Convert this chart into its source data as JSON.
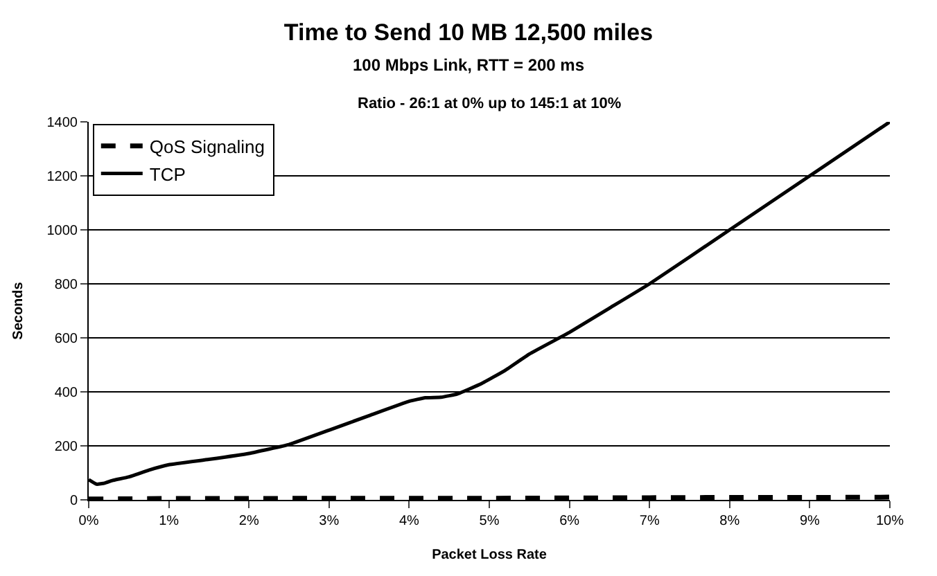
{
  "chart_data": {
    "type": "line",
    "title": "Time to Send 10 MB 12,500 miles",
    "subtitle": "100 Mbps Link, RTT = 200 ms",
    "annotations": [
      "Ratio - 26:1 at 0% up to 145:1 at 10%"
    ],
    "xlabel": "Packet Loss Rate",
    "ylabel": "Seconds",
    "xlim": [
      0,
      10
    ],
    "xticks": [
      {
        "value": 0,
        "label": "0%"
      },
      {
        "value": 1,
        "label": "1%"
      },
      {
        "value": 2,
        "label": "2%"
      },
      {
        "value": 3,
        "label": "3%"
      },
      {
        "value": 4,
        "label": "4%"
      },
      {
        "value": 5,
        "label": "5%"
      },
      {
        "value": 6,
        "label": "6%"
      },
      {
        "value": 7,
        "label": "7%"
      },
      {
        "value": 8,
        "label": "8%"
      },
      {
        "value": 9,
        "label": "9%"
      },
      {
        "value": 10,
        "label": "10%"
      }
    ],
    "ylim": [
      0,
      1400
    ],
    "yticks": [
      0,
      200,
      400,
      600,
      800,
      1000,
      1200,
      1400
    ],
    "grid": "y",
    "legend": "top left",
    "marker": "none",
    "series": [
      {
        "name": "QoS Signaling",
        "color": "#000000",
        "line_style": "dashed",
        "x": [
          0,
          1,
          2,
          3,
          4,
          5,
          6,
          7,
          8,
          9,
          10
        ],
        "values": [
          3,
          5,
          5,
          6,
          6,
          6,
          7,
          8,
          9,
          9,
          10
        ]
      },
      {
        "name": "TCP",
        "color": "#000000",
        "line_style": "solid",
        "x": [
          0,
          0.1,
          0.2,
          0.3,
          0.5,
          0.75,
          1,
          1.5,
          2,
          2.5,
          3,
          3.5,
          4,
          4.2,
          4.4,
          4.6,
          4.9,
          5.2,
          5.5,
          6,
          6.5,
          7,
          8,
          9,
          10
        ],
        "values": [
          75,
          58,
          62,
          72,
          85,
          110,
          130,
          150,
          172,
          205,
          258,
          312,
          365,
          378,
          380,
          392,
          430,
          480,
          540,
          620,
          710,
          800,
          1000,
          1200,
          1400
        ]
      }
    ]
  }
}
